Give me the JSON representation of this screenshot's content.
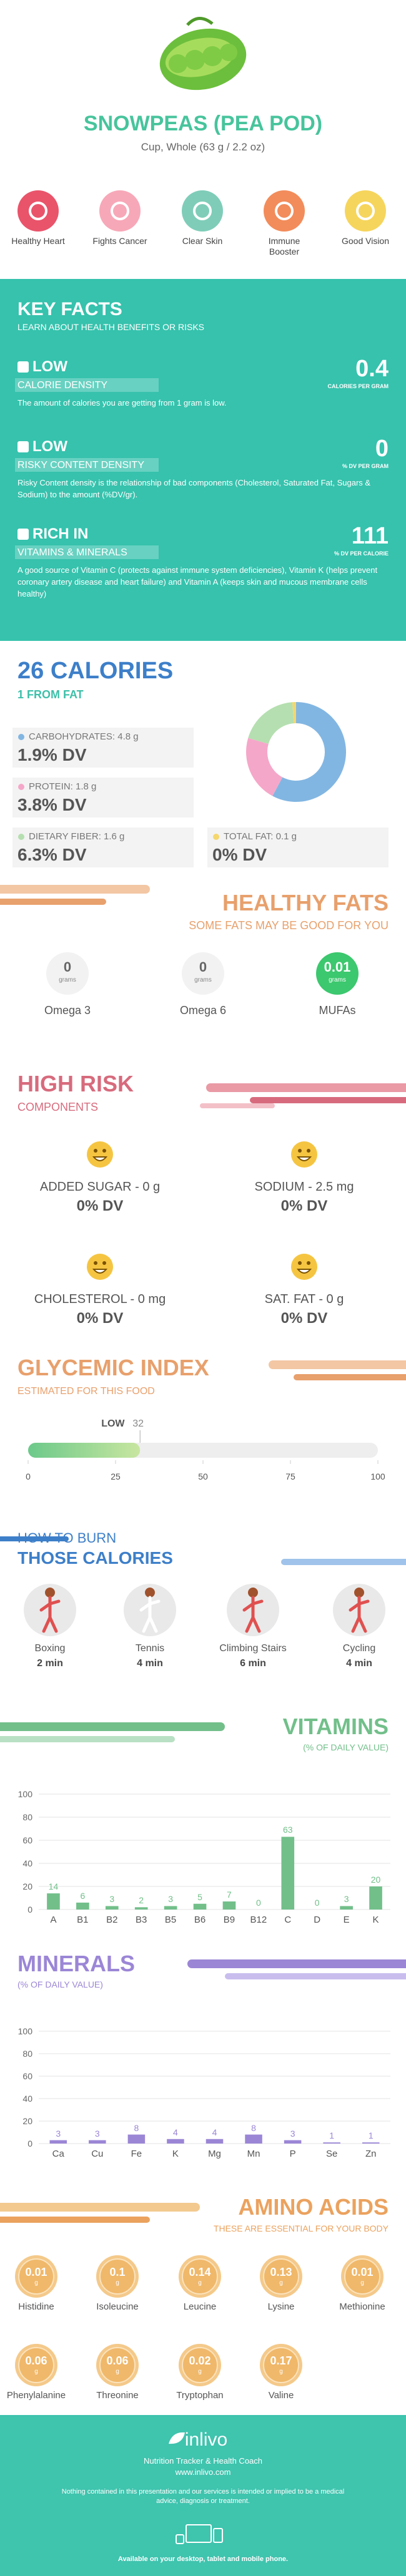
{
  "header": {
    "title": "SNOWPEAS (PEA POD)",
    "subtitle": "Cup, Whole (63 g / 2.2 oz)"
  },
  "benefits": [
    {
      "label": "Healthy Heart",
      "color": "#e9546b"
    },
    {
      "label": "Fights Cancer",
      "color": "#f7a8b8"
    },
    {
      "label": "Clear Skin",
      "color": "#7fcdb9"
    },
    {
      "label": "Immune Booster",
      "color": "#f28c5b"
    },
    {
      "label": "Good Vision",
      "color": "#f6d55c"
    }
  ],
  "key_facts": {
    "title": "KEY FACTS",
    "subtitle": "LEARN ABOUT HEALTH BENEFITS OR RISKS",
    "items": [
      {
        "level": "LOW",
        "label": "CALORIE DENSITY",
        "text": "The amount of calories you are getting from 1 gram is low.",
        "value": 0.4,
        "unit": "CALORIES PER GRAM"
      },
      {
        "level": "LOW",
        "label": "RISKY CONTENT DENSITY",
        "text": "Risky Content density is the relationship of bad components (Cholesterol, Saturated Fat, Sugars & Sodium) to the amount (%DV/gr).",
        "value": 0,
        "unit": "% DV PER GRAM"
      },
      {
        "level": "RICH IN",
        "label": "VITAMINS & MINERALS",
        "text": "A good source of Vitamin C (protects against immune system deficiencies), Vitamin K (helps prevent coronary artery disease and heart failure) and Vitamin A (keeps skin and mucous membrane cells healthy)",
        "value": 111,
        "unit": "% DV PER CALORIE"
      }
    ]
  },
  "calories": {
    "title": "26 CALORIES",
    "subtitle": "1 FROM FAT"
  },
  "healthy_fats": {
    "title": "HEALTHY FATS",
    "subtitle": "SOME FATS MAY BE GOOD FOR YOU",
    "unit": "grams",
    "items": [
      {
        "name": "Omega 3",
        "value": 0
      },
      {
        "name": "Omega 6",
        "value": 0
      },
      {
        "name": "MUFAs",
        "value": 0.01
      }
    ]
  },
  "high_risk": {
    "title": "HIGH RISK",
    "subtitle": "COMPONENTS",
    "items": [
      {
        "name": "ADDED SUGAR - 0 g",
        "dv": "0% DV"
      },
      {
        "name": "SODIUM - 2.5 mg",
        "dv": "0% DV"
      },
      {
        "name": "CHOLESTEROL - 0 mg",
        "dv": "0% DV"
      },
      {
        "name": "SAT. FAT - 0 g",
        "dv": "0% DV"
      }
    ]
  },
  "glycemic": {
    "title": "GLYCEMIC INDEX",
    "subtitle": "ESTIMATED FOR THIS FOOD",
    "label": "LOW",
    "value": 32,
    "xlim": [
      0,
      100
    ],
    "xticks": [
      0,
      25,
      50,
      75,
      100
    ]
  },
  "burn": {
    "title": "HOW TO BURN",
    "subtitle": "THOSE CALORIES",
    "items": [
      {
        "name": "Boxing",
        "time": "2 min"
      },
      {
        "name": "Tennis",
        "time": "4 min"
      },
      {
        "name": "Climbing Stairs",
        "time": "6 min"
      },
      {
        "name": "Cycling",
        "time": "4 min"
      }
    ]
  },
  "chart_data": [
    {
      "type": "pie",
      "categories": [
        "CARBOHYDRATES: 4.8 g",
        "PROTEIN: 1.8 g",
        "DIETARY FIBER: 1.6 g",
        "TOTAL FAT: 0.1 g"
      ],
      "values": [
        4.8,
        1.8,
        1.6,
        0.1
      ],
      "dv": [
        "1.9% DV",
        "3.8% DV",
        "6.3% DV",
        "0% DV"
      ],
      "colors": [
        "#82b6e2",
        "#f5a7c9",
        "#b5dfb0",
        "#f5d76e"
      ]
    },
    {
      "type": "bar",
      "title": "VITAMINS",
      "subtitle": "(% OF DAILY VALUE)",
      "categories": [
        "A",
        "B1",
        "B2",
        "B3",
        "B5",
        "B6",
        "B9",
        "B12",
        "C",
        "D",
        "E",
        "K"
      ],
      "values": [
        14,
        6,
        3,
        2,
        3,
        5,
        7,
        0,
        63,
        0,
        3,
        20
      ],
      "color": "#72bf8a",
      "ylim": [
        0,
        100
      ],
      "yticks": [
        0,
        20,
        40,
        60,
        80,
        100
      ],
      "grid": true
    },
    {
      "type": "bar",
      "title": "MINERALS",
      "subtitle": "(% OF DAILY VALUE)",
      "categories": [
        "Ca",
        "Cu",
        "Fe",
        "K",
        "Mg",
        "Mn",
        "P",
        "Se",
        "Zn"
      ],
      "values": [
        3,
        3,
        8,
        4,
        4,
        8,
        3,
        1,
        1
      ],
      "color": "#9b86d6",
      "ylim": [
        0,
        100
      ],
      "yticks": [
        0,
        20,
        40,
        60,
        80,
        100
      ],
      "grid": true
    }
  ],
  "amino_acids": {
    "title": "AMINO ACIDS",
    "subtitle": "THESE ARE ESSENTIAL FOR YOUR BODY",
    "unit": "g",
    "items": [
      {
        "name": "Histidine",
        "value": 0.01
      },
      {
        "name": "Isoleucine",
        "value": 0.1
      },
      {
        "name": "Leucine",
        "value": 0.14
      },
      {
        "name": "Lysine",
        "value": 0.13
      },
      {
        "name": "Methionine",
        "value": 0.01
      },
      {
        "name": "Phenylalanine",
        "value": 0.06
      },
      {
        "name": "Threonine",
        "value": 0.06
      },
      {
        "name": "Tryptophan",
        "value": 0.02
      },
      {
        "name": "Valine",
        "value": 0.17
      }
    ]
  },
  "footer": {
    "logo": "inlivo",
    "tagline": "Nutrition Tracker & Health Coach",
    "url": "www.inlivo.com",
    "disclaimer": "Nothing contained in this presentation and our services is intended or implied to be a medical advice, diagnosis or treatment.",
    "available": "Available on your desktop, tablet and mobile phone."
  }
}
